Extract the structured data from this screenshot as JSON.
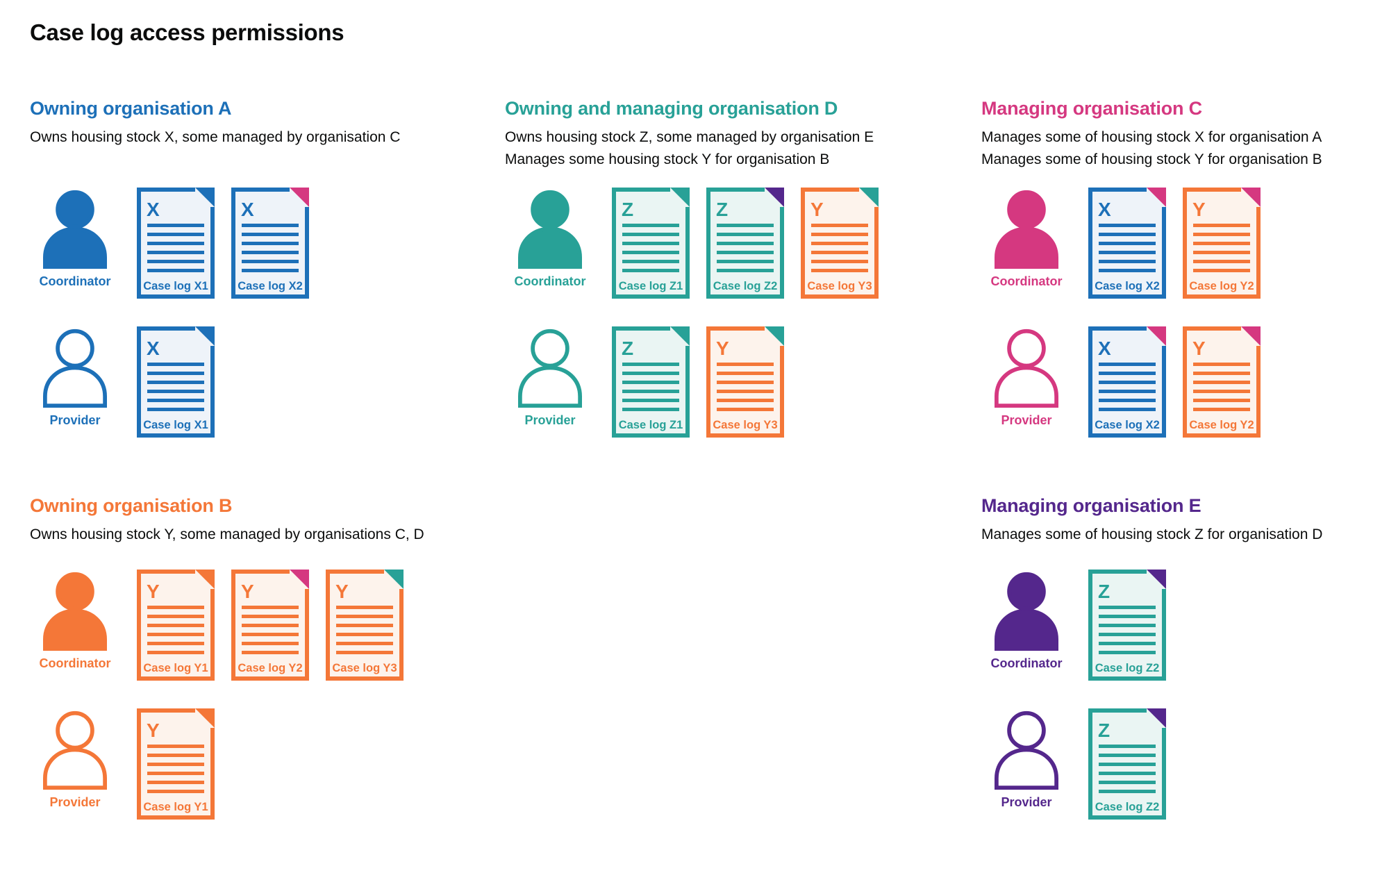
{
  "page_title": "Case log access permissions",
  "palette": {
    "blue": {
      "main": "#1d70b8",
      "tint": "#eef3f9"
    },
    "teal": {
      "main": "#28a197",
      "tint": "#eaf5f3"
    },
    "orange": {
      "main": "#f47738",
      "tint": "#fdf3ec"
    },
    "pink": {
      "main": "#d53880",
      "tint": "#fbeaf2"
    },
    "purple": {
      "main": "#54278c",
      "tint": "#eeeaf5"
    }
  },
  "text_color": "#0b0c0c",
  "sections": [
    {
      "id": "owning-organisation-a",
      "title": "Owning organisation A",
      "color": "blue",
      "column": 1,
      "row": 1,
      "description_lines": [
        "Owns housing stock X, some managed by organisation C"
      ],
      "rows": [
        {
          "role": "Coordinator",
          "person_style": "filled",
          "documents": [
            {
              "label": "Case log X1",
              "letter": "X",
              "doc_color": "blue",
              "fold_color": "blue"
            },
            {
              "label": "Case log X2",
              "letter": "X",
              "doc_color": "blue",
              "fold_color": "pink"
            }
          ]
        },
        {
          "role": "Provider",
          "person_style": "outline",
          "documents": [
            {
              "label": "Case log X1",
              "letter": "X",
              "doc_color": "blue",
              "fold_color": "blue"
            }
          ]
        }
      ]
    },
    {
      "id": "owning-and-managing-organisation-d",
      "title": "Owning and managing organisation D",
      "color": "teal",
      "column": 2,
      "row": 1,
      "description_lines": [
        "Owns housing stock Z, some managed by organisation E",
        "Manages some housing stock Y for organisation B"
      ],
      "rows": [
        {
          "role": "Coordinator",
          "person_style": "filled",
          "documents": [
            {
              "label": "Case log Z1",
              "letter": "Z",
              "doc_color": "teal",
              "fold_color": "teal"
            },
            {
              "label": "Case log Z2",
              "letter": "Z",
              "doc_color": "teal",
              "fold_color": "purple"
            },
            {
              "label": "Case log Y3",
              "letter": "Y",
              "doc_color": "orange",
              "fold_color": "teal"
            }
          ]
        },
        {
          "role": "Provider",
          "person_style": "outline",
          "documents": [
            {
              "label": "Case log Z1",
              "letter": "Z",
              "doc_color": "teal",
              "fold_color": "teal"
            },
            {
              "label": "Case log Y3",
              "letter": "Y",
              "doc_color": "orange",
              "fold_color": "teal"
            }
          ]
        }
      ]
    },
    {
      "id": "managing-organisation-c",
      "title": "Managing organisation C",
      "color": "pink",
      "column": 3,
      "row": 1,
      "description_lines": [
        "Manages some of housing stock X for organisation A",
        "Manages some of housing stock Y for organisation B"
      ],
      "rows": [
        {
          "role": "Coordinator",
          "person_style": "filled",
          "documents": [
            {
              "label": "Case log X2",
              "letter": "X",
              "doc_color": "blue",
              "fold_color": "pink"
            },
            {
              "label": "Case log Y2",
              "letter": "Y",
              "doc_color": "orange",
              "fold_color": "pink"
            }
          ]
        },
        {
          "role": "Provider",
          "person_style": "outline",
          "documents": [
            {
              "label": "Case log X2",
              "letter": "X",
              "doc_color": "blue",
              "fold_color": "pink"
            },
            {
              "label": "Case log Y2",
              "letter": "Y",
              "doc_color": "orange",
              "fold_color": "pink"
            }
          ]
        }
      ]
    },
    {
      "id": "owning-organisation-b",
      "title": "Owning organisation B",
      "color": "orange",
      "column": 1,
      "row": 2,
      "description_lines": [
        "Owns housing stock Y, some managed by organisations C, D"
      ],
      "rows": [
        {
          "role": "Coordinator",
          "person_style": "filled",
          "documents": [
            {
              "label": "Case log Y1",
              "letter": "Y",
              "doc_color": "orange",
              "fold_color": "orange"
            },
            {
              "label": "Case log Y2",
              "letter": "Y",
              "doc_color": "orange",
              "fold_color": "pink"
            },
            {
              "label": "Case log Y3",
              "letter": "Y",
              "doc_color": "orange",
              "fold_color": "teal"
            }
          ]
        },
        {
          "role": "Provider",
          "person_style": "outline",
          "documents": [
            {
              "label": "Case log Y1",
              "letter": "Y",
              "doc_color": "orange",
              "fold_color": "orange"
            }
          ]
        }
      ]
    },
    {
      "id": "managing-organisation-e",
      "title": "Managing organisation E",
      "color": "purple",
      "column": 3,
      "row": 2,
      "description_lines": [
        "Manages some of housing stock Z for organisation D"
      ],
      "rows": [
        {
          "role": "Coordinator",
          "person_style": "filled",
          "documents": [
            {
              "label": "Case log Z2",
              "letter": "Z",
              "doc_color": "teal",
              "fold_color": "purple"
            }
          ]
        },
        {
          "role": "Provider",
          "person_style": "outline",
          "documents": [
            {
              "label": "Case log Z2",
              "letter": "Z",
              "doc_color": "teal",
              "fold_color": "purple"
            }
          ]
        }
      ]
    }
  ]
}
